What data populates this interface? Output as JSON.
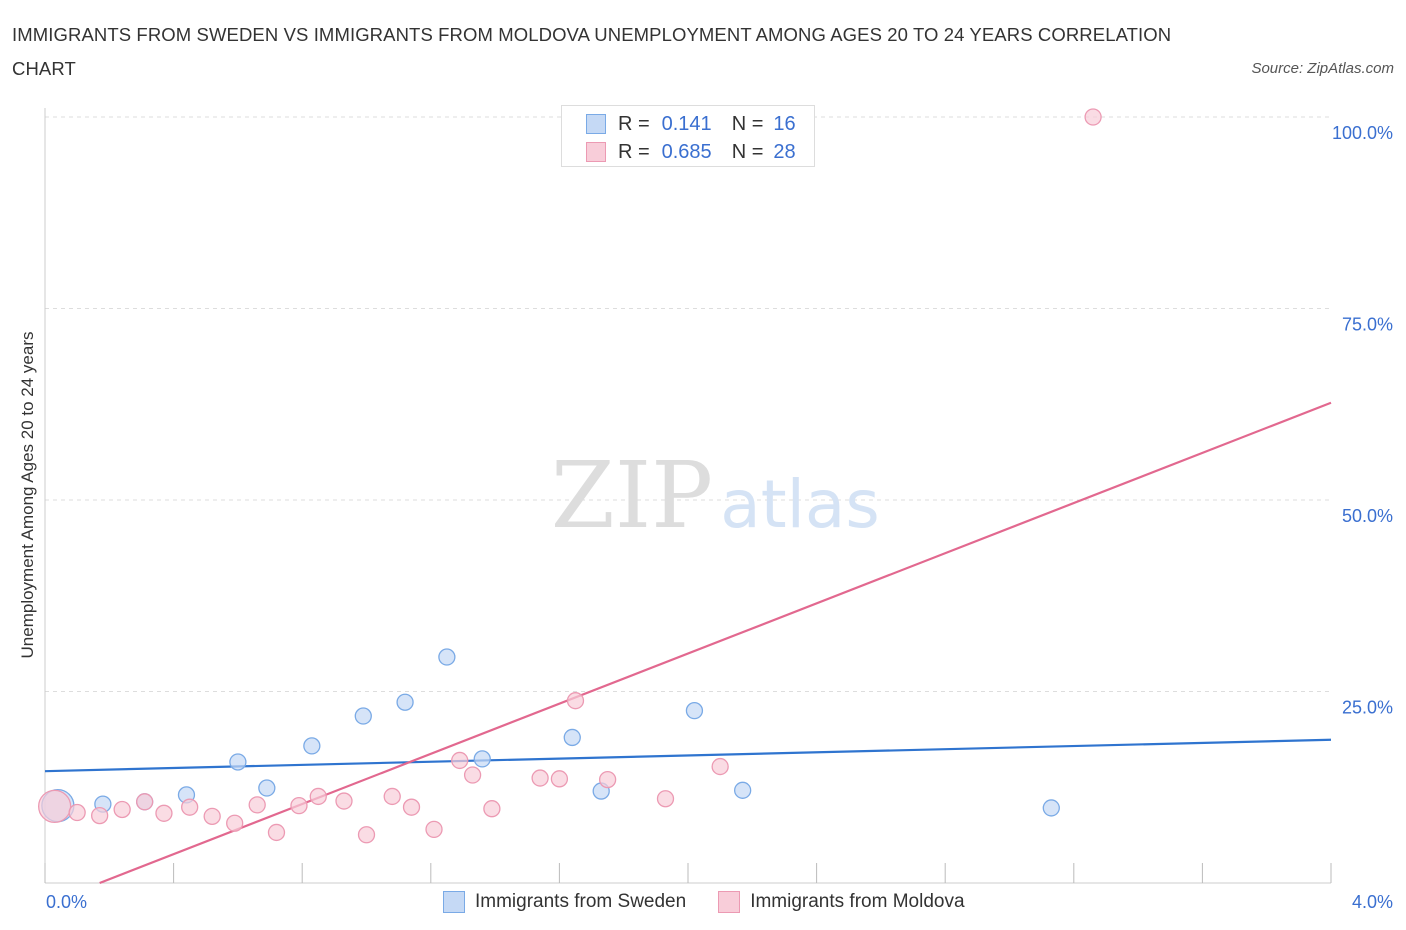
{
  "title": "IMMIGRANTS FROM SWEDEN VS IMMIGRANTS FROM MOLDOVA UNEMPLOYMENT AMONG AGES 20 TO 24 YEARS CORRELATION CHART",
  "source": "Source: ZipAtlas.com",
  "watermark": {
    "zip": "ZIP",
    "atlas": "atlas"
  },
  "legend": {
    "r_label": "R =",
    "n_label": "N =",
    "rows": [
      {
        "series": "Immigrants from Sweden",
        "r": "0.141",
        "n": "16"
      },
      {
        "series": "Immigrants from Moldova",
        "r": "0.685",
        "n": "28"
      }
    ]
  },
  "colors": {
    "sweden_fill": "#c5d9f5",
    "sweden_stroke": "#7aaae6",
    "sweden_line": "#2f74cf",
    "moldova_fill": "#f8cdd9",
    "moldova_stroke": "#ec9ab3",
    "moldova_line": "#e2688f",
    "tick_text": "#3a6fd0",
    "grid": "#dddddd"
  },
  "chart_data": {
    "type": "scatter",
    "title": "IMMIGRANTS FROM SWEDEN VS IMMIGRANTS FROM MOLDOVA UNEMPLOYMENT AMONG AGES 20 TO 24 YEARS CORRELATION CHART",
    "xlabel": "",
    "ylabel": "Unemployment Among Ages 20 to 24 years",
    "xlim": [
      0,
      4
    ],
    "ylim": [
      0,
      100
    ],
    "x_tick_labels": [
      "0.0%",
      "4.0%"
    ],
    "y_ticks": [
      25,
      50,
      75,
      100
    ],
    "y_tick_labels": [
      "25.0%",
      "50.0%",
      "75.0%",
      "100.0%"
    ],
    "legend_position": "top-center",
    "series": [
      {
        "name": "Immigrants from Sweden",
        "points": [
          {
            "x": 0.04,
            "y": 10.1,
            "big": true
          },
          {
            "x": 0.18,
            "y": 10.3
          },
          {
            "x": 0.31,
            "y": 10.6
          },
          {
            "x": 0.44,
            "y": 11.5
          },
          {
            "x": 0.6,
            "y": 15.8
          },
          {
            "x": 0.69,
            "y": 12.4
          },
          {
            "x": 0.83,
            "y": 17.9
          },
          {
            "x": 0.99,
            "y": 21.8
          },
          {
            "x": 1.12,
            "y": 23.6
          },
          {
            "x": 1.25,
            "y": 29.5
          },
          {
            "x": 1.36,
            "y": 16.2
          },
          {
            "x": 1.64,
            "y": 19.0
          },
          {
            "x": 1.73,
            "y": 12.0
          },
          {
            "x": 2.02,
            "y": 22.5
          },
          {
            "x": 2.17,
            "y": 12.1
          },
          {
            "x": 3.13,
            "y": 9.8
          }
        ],
        "trend": {
          "x": [
            0,
            4
          ],
          "y": [
            14.6,
            18.7
          ]
        }
      },
      {
        "name": "Immigrants from Moldova",
        "points": [
          {
            "x": 0.03,
            "y": 10.0,
            "big": true
          },
          {
            "x": 0.1,
            "y": 9.2
          },
          {
            "x": 0.17,
            "y": 8.8
          },
          {
            "x": 0.24,
            "y": 9.6
          },
          {
            "x": 0.31,
            "y": 10.6
          },
          {
            "x": 0.37,
            "y": 9.1
          },
          {
            "x": 0.45,
            "y": 9.9
          },
          {
            "x": 0.52,
            "y": 8.7
          },
          {
            "x": 0.59,
            "y": 7.8
          },
          {
            "x": 0.66,
            "y": 10.2
          },
          {
            "x": 0.72,
            "y": 6.6
          },
          {
            "x": 0.79,
            "y": 10.1
          },
          {
            "x": 0.85,
            "y": 11.3
          },
          {
            "x": 0.93,
            "y": 10.7
          },
          {
            "x": 1.0,
            "y": 6.3
          },
          {
            "x": 1.08,
            "y": 11.3
          },
          {
            "x": 1.14,
            "y": 9.9
          },
          {
            "x": 1.21,
            "y": 7.0
          },
          {
            "x": 1.29,
            "y": 16.0
          },
          {
            "x": 1.33,
            "y": 14.1
          },
          {
            "x": 1.39,
            "y": 9.7
          },
          {
            "x": 1.54,
            "y": 13.7
          },
          {
            "x": 1.6,
            "y": 13.6
          },
          {
            "x": 1.65,
            "y": 23.8
          },
          {
            "x": 1.75,
            "y": 13.5
          },
          {
            "x": 1.93,
            "y": 11.0
          },
          {
            "x": 2.1,
            "y": 15.2
          },
          {
            "x": 3.26,
            "y": 100.0
          }
        ],
        "trend": {
          "x": [
            0.17,
            4
          ],
          "y": [
            0,
            62.7
          ]
        }
      }
    ]
  }
}
